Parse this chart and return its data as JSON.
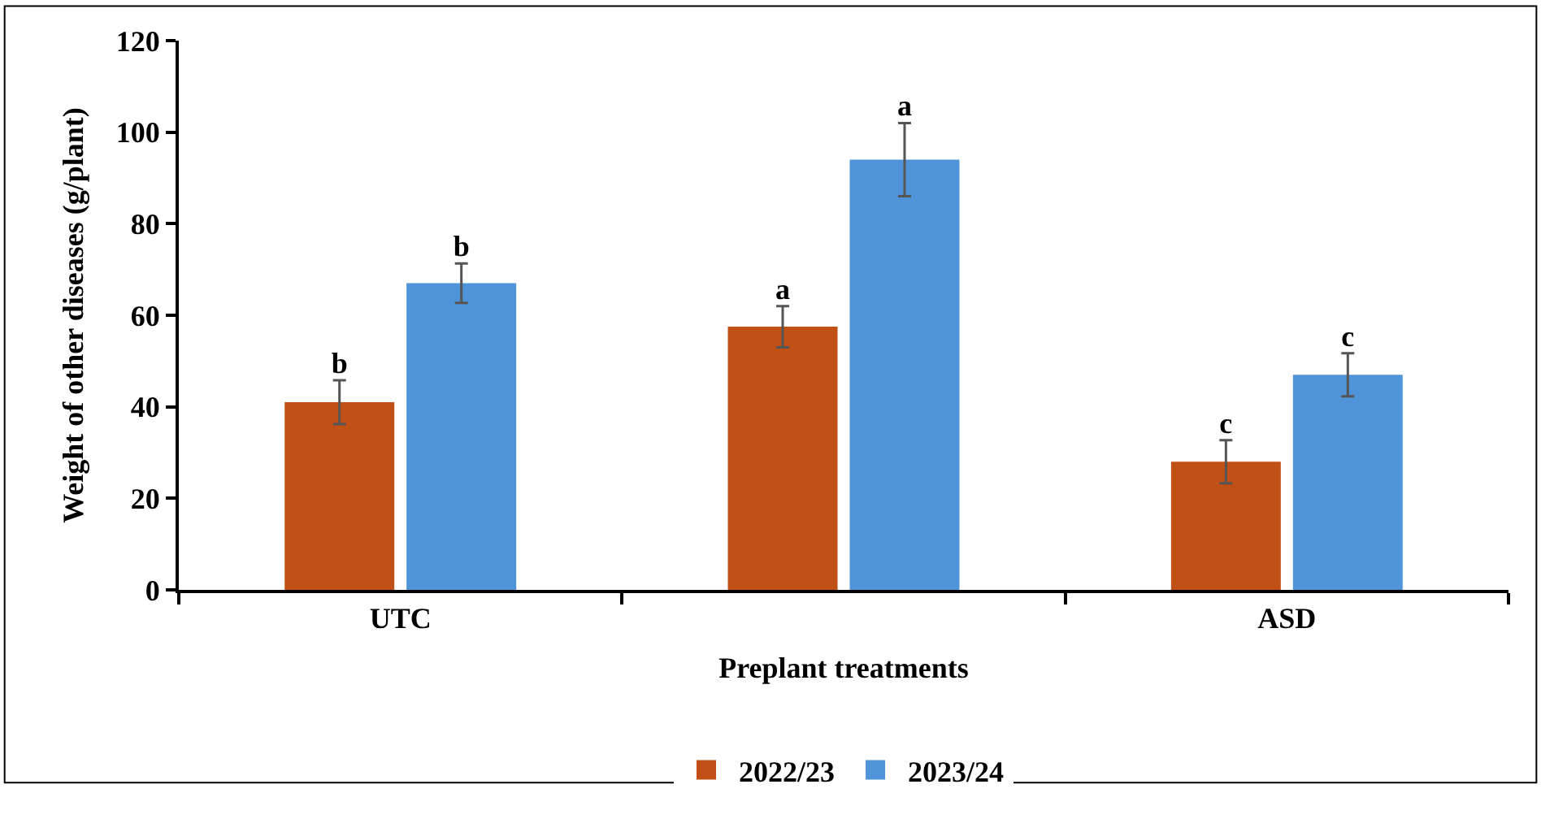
{
  "chart_data": {
    "type": "bar",
    "xlabel": "Preplant treatments",
    "ylabel": "Weight of other diseases (g/plant)",
    "categories": [
      "UTC",
      null,
      "ASD"
    ],
    "series": [
      {
        "name": "2022/23",
        "color": "#c05016",
        "values": [
          41,
          57.5,
          28
        ],
        "errors": [
          4.8,
          4.5,
          4.7
        ],
        "value_labels": [
          "b",
          "a",
          "c"
        ]
      },
      {
        "name": "2023/24",
        "color": "#4f94d8",
        "values": [
          67,
          94,
          47
        ],
        "errors": [
          4.3,
          8,
          4.7
        ],
        "value_labels": [
          "b",
          "a",
          "c"
        ]
      }
    ],
    "ylim": [
      0,
      120
    ],
    "yticks": [
      0,
      20,
      40,
      60,
      80,
      100,
      120
    ],
    "legend": "bottom"
  }
}
